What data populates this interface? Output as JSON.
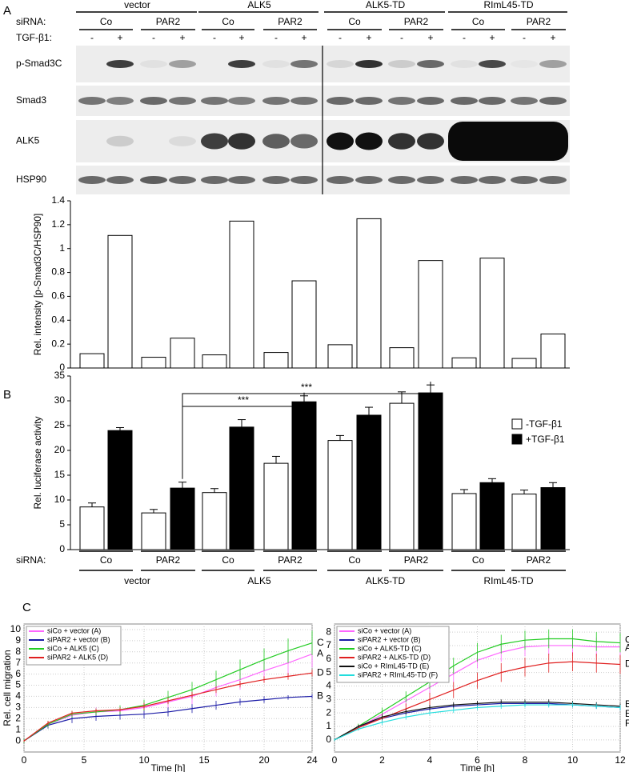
{
  "panels": [
    "A",
    "B",
    "C"
  ],
  "blot": {
    "groups": [
      "vector",
      "ALK5",
      "ALK5-TD",
      "RImL45-TD"
    ],
    "sirna_label": "siRNA:",
    "sirna": [
      "Co",
      "PAR2",
      "Co",
      "PAR2",
      "Co",
      "PAR2",
      "Co",
      "PAR2"
    ],
    "tgf_label": "TGF-β1:",
    "tgf": [
      "-",
      "+",
      "-",
      "+",
      "-",
      "+",
      "-",
      "+",
      "-",
      "+",
      "-",
      "+",
      "-",
      "+",
      "-",
      "+"
    ],
    "row_labels": [
      "p-Smad3C",
      "Smad3",
      "ALK5",
      "HSP90"
    ]
  },
  "chart_data": [
    {
      "type": "bar",
      "y_label": "Rel. intensity [p-Smad3C/HSP90]",
      "values": [
        0.12,
        1.11,
        0.09,
        0.25,
        0.11,
        1.23,
        0.13,
        0.73,
        0.195,
        1.25,
        0.17,
        0.9,
        0.085,
        0.92,
        0.08,
        0.285
      ],
      "color": "#ffffff",
      "ylim": [
        0,
        1.4
      ],
      "yticks": [
        0,
        0.2,
        0.4,
        0.6,
        0.8,
        1,
        1.2,
        1.4
      ]
    },
    {
      "type": "grouped-bar",
      "y_label": "Rel. luciferase activity",
      "series": [
        {
          "name": "-TGF-β1",
          "color": "#ffffff",
          "values": [
            8.6,
            7.4,
            11.5,
            17.4,
            22,
            29.5,
            11.3,
            11.2
          ],
          "errors": [
            0.8,
            0.7,
            0.8,
            1.4,
            1.0,
            2.3,
            0.8,
            0.8
          ]
        },
        {
          "name": "+TGF-β1",
          "color": "#000000",
          "values": [
            24,
            12.4,
            24.7,
            29.8,
            27.1,
            31.6,
            13.5,
            12.5
          ],
          "errors": [
            0.6,
            1.2,
            1.5,
            1.2,
            1.6,
            1.6,
            0.8,
            1.0
          ]
        }
      ],
      "ylim": [
        0,
        35
      ],
      "yticks": [
        0,
        5,
        10,
        15,
        20,
        25,
        30,
        35
      ],
      "legend": "upper right",
      "annotations": [
        "***",
        "***"
      ],
      "sirna_label": "siRNA:",
      "sirna": [
        "Co",
        "PAR2",
        "Co",
        "PAR2",
        "Co",
        "PAR2",
        "Co",
        "PAR2"
      ],
      "groups": [
        "vector",
        "ALK5",
        "ALK5-TD",
        "RImL45-TD"
      ]
    },
    {
      "type": "line",
      "y_label": "Rel. cell migration",
      "x_label": "Time [h]",
      "x": [
        0,
        2,
        4,
        6,
        8,
        10,
        12,
        14,
        16,
        18,
        20,
        22,
        24
      ],
      "xlim": [
        0,
        24
      ],
      "xticks": [
        0,
        5,
        10,
        15,
        20,
        24
      ],
      "ylim": [
        -1,
        10.5
      ],
      "yticks": [
        0,
        1,
        2,
        3,
        4,
        5,
        6,
        7,
        8,
        9,
        10
      ],
      "grid": true,
      "legend": "upper left",
      "series": [
        {
          "name": "siCo + vector (A)",
          "end_label": "A",
          "color": "#ff66ff",
          "values": [
            0,
            1.5,
            2.3,
            2.6,
            2.7,
            3.0,
            3.5,
            4.0,
            4.8,
            5.5,
            6.3,
            7.0,
            7.8
          ],
          "errors": [
            0.2,
            0.3,
            0.3,
            0.4,
            0.4,
            0.5,
            0.6,
            0.7,
            0.8,
            0.9,
            1.0,
            1.1,
            1.2
          ]
        },
        {
          "name": "siPAR2 + vector (B)",
          "end_label": "B",
          "color": "#1a1aa6",
          "values": [
            0,
            1.4,
            2.0,
            2.2,
            2.3,
            2.4,
            2.6,
            2.9,
            3.2,
            3.5,
            3.7,
            3.9,
            4.0
          ],
          "errors": [
            0.2,
            0.3,
            0.4,
            0.4,
            0.4,
            0.4,
            0.4,
            0.4,
            0.4,
            0.3,
            0.3,
            0.2,
            0.2
          ]
        },
        {
          "name": "siCo + ALK5 (C)",
          "end_label": "C",
          "color": "#22cc22",
          "values": [
            0,
            1.5,
            2.4,
            2.6,
            2.8,
            3.2,
            3.9,
            4.6,
            5.5,
            6.4,
            7.3,
            8.1,
            8.8
          ],
          "errors": [
            0.2,
            0.3,
            0.3,
            0.3,
            0.4,
            0.5,
            0.6,
            0.7,
            0.8,
            0.9,
            1.0,
            1.1,
            1.1
          ]
        },
        {
          "name": "siPAR2 + ALK5 (D)",
          "end_label": "D",
          "color": "#e02020",
          "values": [
            0,
            1.6,
            2.5,
            2.7,
            2.8,
            3.1,
            3.6,
            4.1,
            4.6,
            5.1,
            5.5,
            5.8,
            6.1
          ],
          "errors": [
            0.1,
            0.2,
            0.2,
            0.2,
            0.2,
            0.3,
            0.3,
            0.3,
            0.3,
            0.3,
            0.3,
            0.3,
            0.3
          ]
        }
      ]
    },
    {
      "type": "line",
      "x_label": "Time [h]",
      "x": [
        0,
        1,
        2,
        3,
        4,
        5,
        6,
        7,
        8,
        9,
        10,
        11,
        12
      ],
      "xlim": [
        0,
        12
      ],
      "xticks": [
        0,
        2,
        4,
        6,
        8,
        10,
        12
      ],
      "ylim": [
        -0.9,
        8.6
      ],
      "yticks": [
        0,
        1,
        2,
        3,
        4,
        5,
        6,
        7,
        8
      ],
      "grid": true,
      "legend": "upper left",
      "series": [
        {
          "name": "siCo + vector (A)",
          "end_label": "A",
          "color": "#ff66ff",
          "values": [
            0,
            0.9,
            1.9,
            2.9,
            3.9,
            4.9,
            5.9,
            6.5,
            6.9,
            7.0,
            7.0,
            6.9,
            6.9
          ],
          "errors": [
            0.1,
            0.2,
            0.3,
            0.4,
            0.5,
            0.6,
            0.6,
            0.7,
            0.7,
            0.7,
            0.7,
            0.7,
            0.7
          ]
        },
        {
          "name": "siPAR2 + vector (B)",
          "end_label": "B",
          "color": "#1a1aa6",
          "values": [
            0,
            1.0,
            1.6,
            2.0,
            2.3,
            2.5,
            2.6,
            2.7,
            2.7,
            2.7,
            2.6,
            2.5,
            2.4
          ],
          "errors": [
            0.1,
            0.1,
            0.2,
            0.2,
            0.2,
            0.2,
            0.2,
            0.2,
            0.2,
            0.2,
            0.2,
            0.2,
            0.2
          ]
        },
        {
          "name": "siCo + ALK5-TD (C)",
          "end_label": "C",
          "color": "#22cc22",
          "values": [
            0,
            1.0,
            2.1,
            3.2,
            4.3,
            5.5,
            6.5,
            7.1,
            7.4,
            7.5,
            7.5,
            7.3,
            7.2
          ],
          "errors": [
            0.1,
            0.2,
            0.3,
            0.4,
            0.5,
            0.6,
            0.7,
            0.7,
            0.7,
            0.7,
            0.7,
            0.7,
            0.7
          ]
        },
        {
          "name": "siPAR2 + ALK5-TD (D)",
          "end_label": "D",
          "color": "#e02020",
          "values": [
            0,
            0.9,
            1.6,
            2.3,
            3.0,
            3.7,
            4.4,
            5.0,
            5.4,
            5.7,
            5.8,
            5.7,
            5.6
          ],
          "errors": [
            0.1,
            0.2,
            0.3,
            0.4,
            0.5,
            0.6,
            0.6,
            0.7,
            0.7,
            0.7,
            0.7,
            0.7,
            0.7
          ]
        },
        {
          "name": "siCo + RImL45-TD (E)",
          "end_label": "E",
          "color": "#111111",
          "values": [
            0,
            1.0,
            1.7,
            2.1,
            2.4,
            2.6,
            2.7,
            2.8,
            2.8,
            2.8,
            2.7,
            2.6,
            2.5
          ],
          "errors": [
            0.1,
            0.1,
            0.2,
            0.2,
            0.2,
            0.2,
            0.2,
            0.2,
            0.2,
            0.2,
            0.2,
            0.2,
            0.2
          ]
        },
        {
          "name": "siPAR2 + RImL45-TD (F)",
          "end_label": "F",
          "color": "#22dddd",
          "values": [
            0,
            0.8,
            1.3,
            1.7,
            2.0,
            2.2,
            2.4,
            2.5,
            2.6,
            2.6,
            2.6,
            2.5,
            2.4
          ],
          "errors": [
            0.1,
            0.1,
            0.2,
            0.2,
            0.2,
            0.2,
            0.2,
            0.2,
            0.2,
            0.2,
            0.2,
            0.2,
            0.2
          ]
        }
      ]
    }
  ]
}
